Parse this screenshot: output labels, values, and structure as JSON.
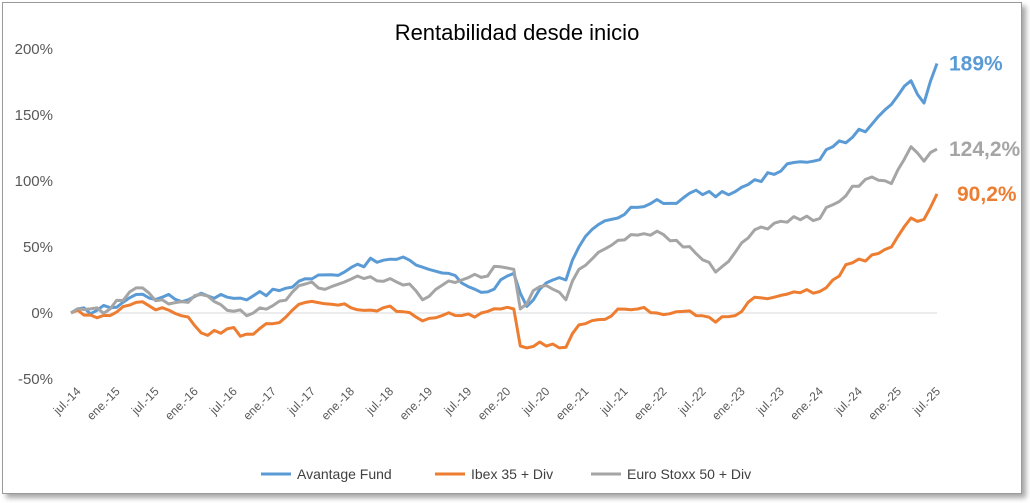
{
  "chart_data": {
    "type": "line",
    "title": "Rentabilidad desde inicio",
    "xlabel": "",
    "ylabel": "",
    "ylim": [
      -50,
      200
    ],
    "yticks": [
      "-50%",
      "0%",
      "50%",
      "100%",
      "150%",
      "200%"
    ],
    "ytick_values": [
      -50,
      0,
      50,
      100,
      150,
      200
    ],
    "x_tick_labels": [
      "jul.-14",
      "ene.-15",
      "jul.-15",
      "ene.-16",
      "jul.-16",
      "ene.-17",
      "jul.-17",
      "ene.-18",
      "jul.-18",
      "ene.-19",
      "jul.-19",
      "ene.-20",
      "jul.-20",
      "ene.-21",
      "jul.-21",
      "ene.-22",
      "jul.-22",
      "ene.-23",
      "jul.-23",
      "ene.-24",
      "jul.-24",
      "ene.-25",
      "jul.-25"
    ],
    "x_start": "2014-06",
    "x_end": "2025-07",
    "x_step": "month",
    "grid": false,
    "legend_position": "bottom",
    "series": [
      {
        "name": "Avantage Fund",
        "color": "#5B9BD5",
        "end_label": "189%",
        "keypoints": [
          [
            "2014-06",
            0
          ],
          [
            "2014-12",
            4
          ],
          [
            "2015-04",
            14
          ],
          [
            "2015-08",
            12
          ],
          [
            "2015-12",
            10
          ],
          [
            "2016-02",
            15
          ],
          [
            "2016-06",
            12
          ],
          [
            "2016-10",
            13
          ],
          [
            "2017-02",
            17
          ],
          [
            "2017-06",
            26
          ],
          [
            "2017-10",
            29
          ],
          [
            "2018-02",
            37
          ],
          [
            "2018-06",
            40
          ],
          [
            "2018-10",
            40
          ],
          [
            "2019-01",
            33
          ],
          [
            "2019-04",
            30
          ],
          [
            "2019-07",
            20
          ],
          [
            "2019-10",
            16
          ],
          [
            "2020-01",
            28
          ],
          [
            "2020-02",
            30
          ],
          [
            "2020-04",
            5
          ],
          [
            "2020-06",
            18
          ],
          [
            "2020-08",
            25
          ],
          [
            "2020-10",
            25
          ],
          [
            "2020-12",
            50
          ],
          [
            "2021-03",
            67
          ],
          [
            "2021-06",
            72
          ],
          [
            "2021-09",
            80
          ],
          [
            "2021-12",
            86
          ],
          [
            "2022-03",
            83
          ],
          [
            "2022-06",
            93
          ],
          [
            "2022-09",
            88
          ],
          [
            "2022-12",
            92
          ],
          [
            "2023-03",
            101
          ],
          [
            "2023-06",
            105
          ],
          [
            "2023-09",
            114
          ],
          [
            "2023-12",
            115
          ],
          [
            "2024-03",
            126
          ],
          [
            "2024-06",
            133
          ],
          [
            "2024-09",
            143
          ],
          [
            "2024-12",
            158
          ],
          [
            "2025-03",
            176
          ],
          [
            "2025-05",
            159
          ],
          [
            "2025-07",
            189
          ]
        ]
      },
      {
        "name": "Ibex 35 + Div",
        "color": "#ED7D31",
        "end_label": "90,2%",
        "keypoints": [
          [
            "2014-06",
            0
          ],
          [
            "2014-12",
            -2
          ],
          [
            "2015-04",
            8
          ],
          [
            "2015-08",
            4
          ],
          [
            "2015-12",
            -3
          ],
          [
            "2016-03",
            -17
          ],
          [
            "2016-06",
            -12
          ],
          [
            "2016-09",
            -16
          ],
          [
            "2016-12",
            -8
          ],
          [
            "2017-03",
            -3
          ],
          [
            "2017-06",
            8
          ],
          [
            "2017-09",
            7
          ],
          [
            "2017-12",
            7
          ],
          [
            "2018-03",
            2
          ],
          [
            "2018-06",
            4
          ],
          [
            "2018-09",
            1
          ],
          [
            "2018-12",
            -6
          ],
          [
            "2019-03",
            -2
          ],
          [
            "2019-06",
            -2
          ],
          [
            "2019-09",
            0
          ],
          [
            "2019-12",
            3
          ],
          [
            "2020-02",
            3
          ],
          [
            "2020-03",
            -25
          ],
          [
            "2020-06",
            -22
          ],
          [
            "2020-10",
            -26
          ],
          [
            "2020-12",
            -9
          ],
          [
            "2021-03",
            -5
          ],
          [
            "2021-06",
            3
          ],
          [
            "2021-09",
            3
          ],
          [
            "2021-12",
            0
          ],
          [
            "2022-03",
            1
          ],
          [
            "2022-06",
            -2
          ],
          [
            "2022-09",
            -7
          ],
          [
            "2022-12",
            -2
          ],
          [
            "2023-03",
            12
          ],
          [
            "2023-06",
            12
          ],
          [
            "2023-09",
            16
          ],
          [
            "2023-12",
            15
          ],
          [
            "2024-03",
            25
          ],
          [
            "2024-06",
            38
          ],
          [
            "2024-09",
            44
          ],
          [
            "2024-12",
            50
          ],
          [
            "2025-03",
            72
          ],
          [
            "2025-05",
            71
          ],
          [
            "2025-07",
            90.2
          ]
        ]
      },
      {
        "name": "Euro Stoxx 50 + Div",
        "color": "#A5A5A5",
        "end_label": "124,2%",
        "keypoints": [
          [
            "2014-06",
            0
          ],
          [
            "2014-12",
            3
          ],
          [
            "2015-04",
            19
          ],
          [
            "2015-08",
            10
          ],
          [
            "2015-12",
            8
          ],
          [
            "2016-02",
            14
          ],
          [
            "2016-06",
            2
          ],
          [
            "2016-10",
            0
          ],
          [
            "2017-02",
            9
          ],
          [
            "2017-06",
            22
          ],
          [
            "2017-10",
            20
          ],
          [
            "2018-02",
            28
          ],
          [
            "2018-06",
            24
          ],
          [
            "2018-10",
            22
          ],
          [
            "2018-12",
            10
          ],
          [
            "2019-03",
            21
          ],
          [
            "2019-06",
            25
          ],
          [
            "2019-09",
            27
          ],
          [
            "2019-12",
            35
          ],
          [
            "2020-02",
            33
          ],
          [
            "2020-03",
            3
          ],
          [
            "2020-06",
            20
          ],
          [
            "2020-08",
            18
          ],
          [
            "2020-10",
            10
          ],
          [
            "2020-12",
            33
          ],
          [
            "2021-03",
            46
          ],
          [
            "2021-06",
            55
          ],
          [
            "2021-09",
            59
          ],
          [
            "2021-12",
            62
          ],
          [
            "2022-03",
            55
          ],
          [
            "2022-06",
            45
          ],
          [
            "2022-09",
            31
          ],
          [
            "2022-12",
            46
          ],
          [
            "2023-03",
            63
          ],
          [
            "2023-06",
            68
          ],
          [
            "2023-09",
            73
          ],
          [
            "2023-12",
            70
          ],
          [
            "2024-03",
            82
          ],
          [
            "2024-06",
            96
          ],
          [
            "2024-09",
            103
          ],
          [
            "2024-12",
            98
          ],
          [
            "2025-03",
            126
          ],
          [
            "2025-05",
            115
          ],
          [
            "2025-07",
            124.2
          ]
        ]
      }
    ]
  }
}
